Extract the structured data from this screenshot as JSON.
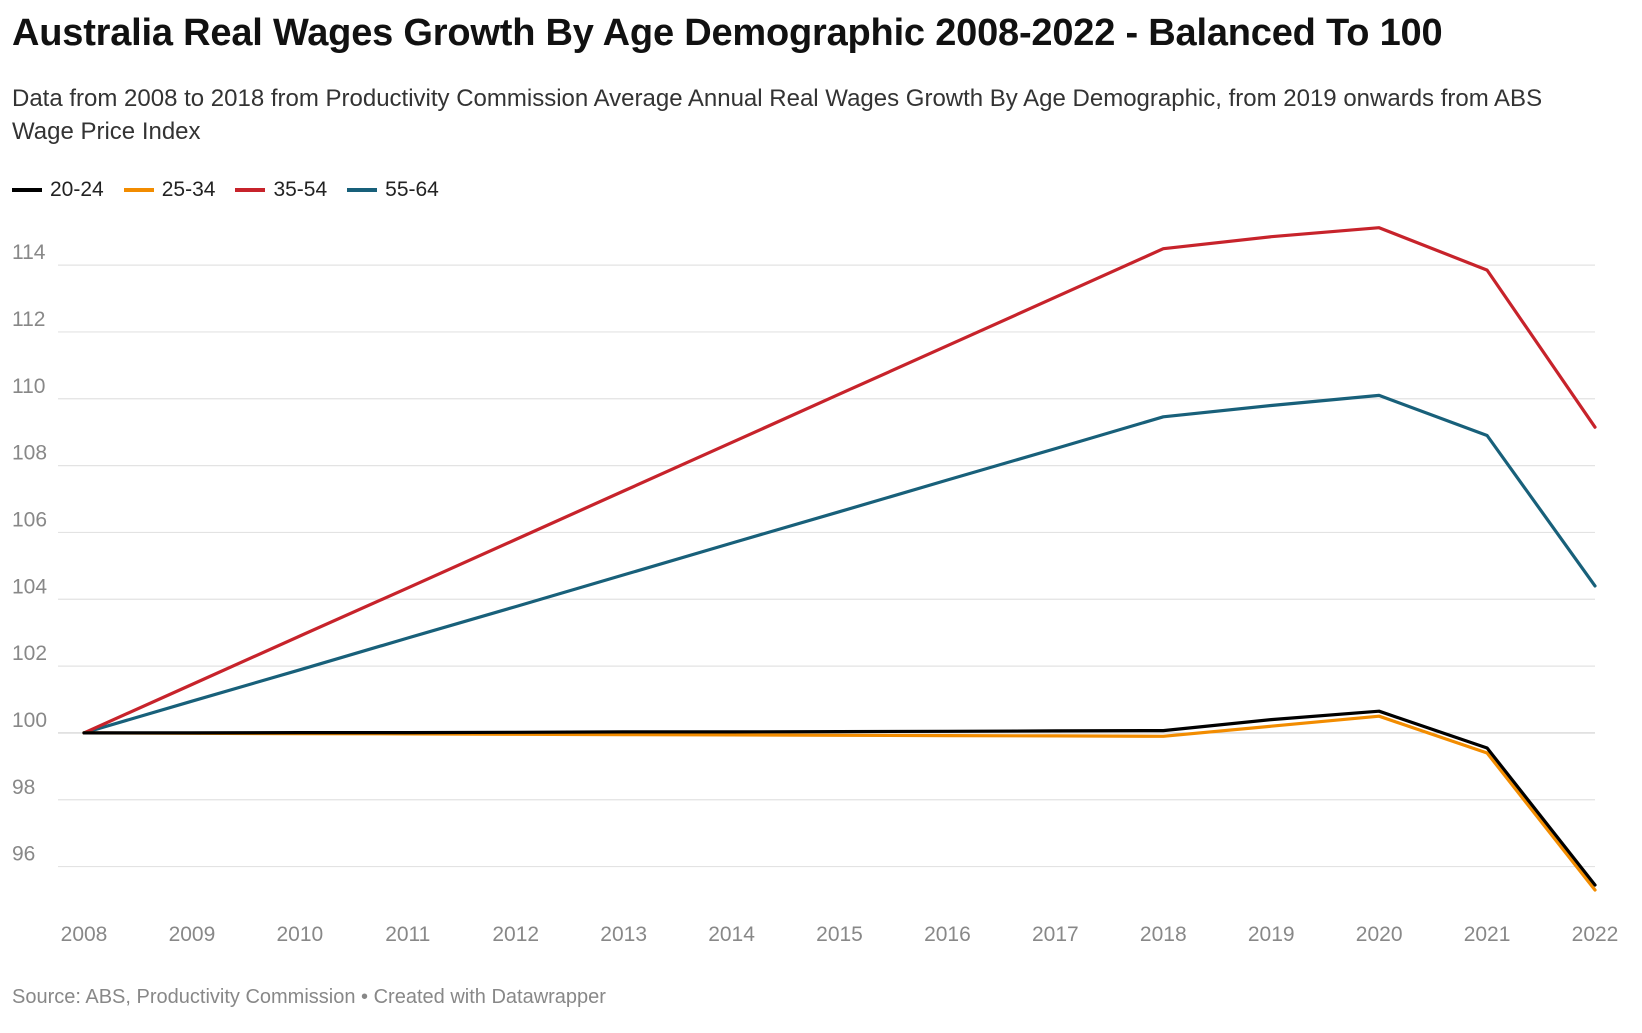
{
  "title": "Australia Real Wages Growth By Age Demographic 2008-2022 - Balanced To 100",
  "subtitle": "Data from 2008 to 2018 from Productivity Commission Average Annual Real Wages Growth By Age Demographic, from 2019 onwards from ABS Wage Price Index",
  "footer": {
    "source": "Source: ABS, Productivity Commission",
    "separator": "•",
    "credit": "Created with Datawrapper"
  },
  "chart_data": {
    "type": "line",
    "title": "Australia Real Wages Growth By Age Demographic 2008-2022 - Balanced To 100",
    "xlabel": "",
    "ylabel": "",
    "x": [
      2008,
      2009,
      2010,
      2011,
      2012,
      2013,
      2014,
      2015,
      2016,
      2017,
      2018,
      2019,
      2020,
      2021,
      2022
    ],
    "ylim": [
      95,
      115.5
    ],
    "yticks": [
      96,
      98,
      100,
      102,
      104,
      106,
      108,
      110,
      112,
      114
    ],
    "grid": true,
    "legend_position": "top-left",
    "series": [
      {
        "name": "20-24",
        "color": "#000000",
        "values": [
          100,
          100.0,
          100.01,
          100.01,
          100.02,
          100.03,
          100.03,
          100.04,
          100.05,
          100.06,
          100.07,
          100.4,
          100.65,
          99.55,
          95.45
        ]
      },
      {
        "name": "25-34",
        "color": "#f28c00",
        "values": [
          100,
          99.99,
          99.98,
          99.97,
          99.96,
          99.95,
          99.94,
          99.93,
          99.92,
          99.91,
          99.9,
          100.2,
          100.5,
          99.4,
          95.3
        ]
      },
      {
        "name": "35-54",
        "color": "#c7232b",
        "values": [
          100,
          101.45,
          102.9,
          104.34,
          105.79,
          107.24,
          108.69,
          110.14,
          111.59,
          113.04,
          114.49,
          114.85,
          115.12,
          113.85,
          109.15
        ]
      },
      {
        "name": "55-64",
        "color": "#18607a",
        "values": [
          100,
          100.95,
          101.89,
          102.84,
          103.78,
          104.73,
          105.68,
          106.62,
          107.57,
          108.51,
          109.46,
          109.8,
          110.1,
          108.9,
          104.4
        ]
      }
    ]
  }
}
